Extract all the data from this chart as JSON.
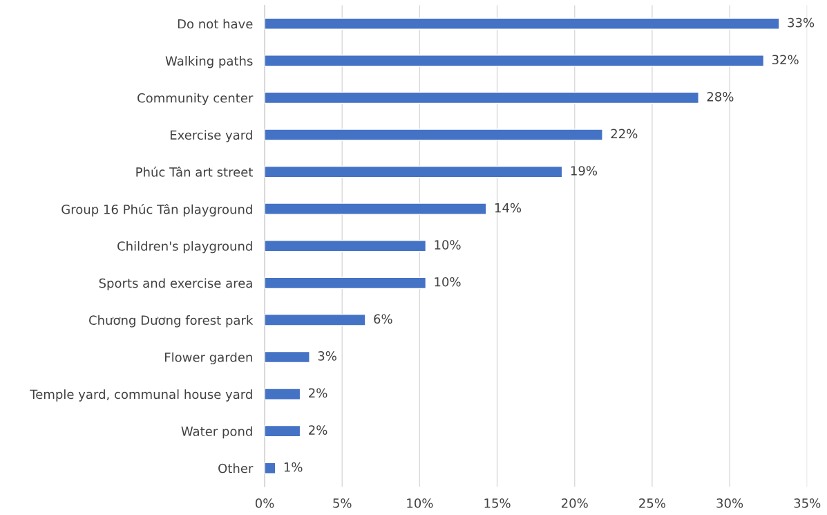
{
  "chart_data": {
    "type": "bar",
    "orientation": "horizontal",
    "categories": [
      "Do not have",
      "Walking paths",
      "Community center",
      "Exercise yard",
      "Phúc Tân art street",
      "Group 16 Phúc Tân playground",
      "Children's playground",
      "Sports and exercise area",
      "Chương Dương forest park",
      "Flower garden",
      "Temple yard, communal house yard",
      "Water pond",
      "Other"
    ],
    "values": [
      33.2,
      32.2,
      28.0,
      21.8,
      19.2,
      14.3,
      10.4,
      10.4,
      6.5,
      2.9,
      2.3,
      2.3,
      0.7
    ],
    "value_labels": [
      "33%",
      "32%",
      "28%",
      "22%",
      "19%",
      "14%",
      "10%",
      "10%",
      "6%",
      "3%",
      "2%",
      "2%",
      "1%"
    ],
    "color": "#4472c4",
    "xlim": [
      0,
      35
    ],
    "xticks": [
      {
        "value": 0,
        "label": "0%"
      },
      {
        "value": 5,
        "label": "5%"
      },
      {
        "value": 10,
        "label": "10%"
      },
      {
        "value": 15,
        "label": "15%"
      },
      {
        "value": 20,
        "label": "20%"
      },
      {
        "value": 25,
        "label": "25%"
      },
      {
        "value": 30,
        "label": "30%"
      },
      {
        "value": 35,
        "label": "35%"
      }
    ],
    "grid": "x",
    "legend": false
  }
}
